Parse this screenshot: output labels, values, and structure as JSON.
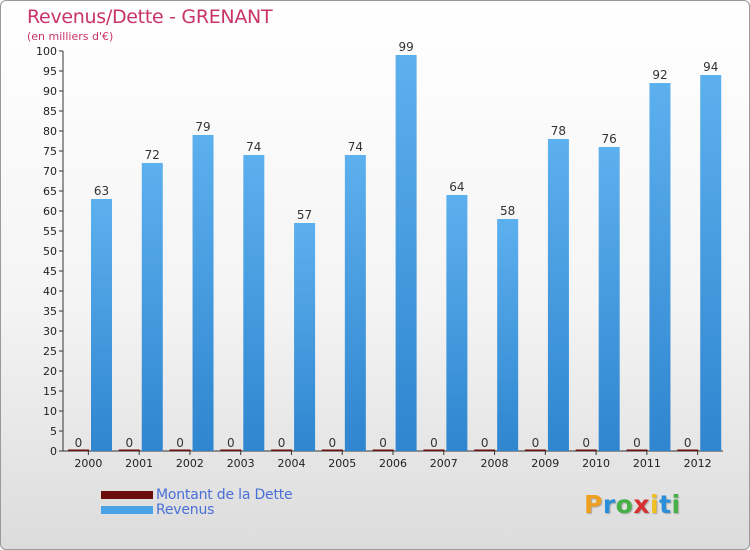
{
  "header": {
    "title": "Revenus/Dette - GRENANT",
    "subtitle": "(en milliers d'€)"
  },
  "legend": {
    "items": [
      {
        "label": "Montant de la Dette",
        "color": "#6b0d0d"
      },
      {
        "label": "Revenus",
        "color": "#4aa3e6"
      }
    ]
  },
  "brand": {
    "text": "Proxiti",
    "letters": [
      "P",
      "r",
      "o",
      "x",
      "i",
      "t",
      "i"
    ],
    "letter_colors": [
      "#f0a020",
      "#2a8fd8",
      "#45b045",
      "#d83030",
      "#f0c020",
      "#2a8fd8",
      "#45b045"
    ]
  },
  "chart_data": {
    "type": "bar",
    "title": "Revenus/Dette - GRENANT",
    "ylabel": "(en milliers d'€)",
    "xlabel": "",
    "categories": [
      "2000",
      "2001",
      "2002",
      "2003",
      "2004",
      "2005",
      "2006",
      "2007",
      "2008",
      "2009",
      "2010",
      "2011",
      "2012"
    ],
    "ylim": [
      0,
      100
    ],
    "ytick_step": 5,
    "grid": false,
    "series": [
      {
        "name": "Montant de la Dette",
        "color": "#6b0d0d",
        "values": [
          0,
          0,
          0,
          0,
          0,
          0,
          0,
          0,
          0,
          0,
          0,
          0,
          0
        ]
      },
      {
        "name": "Revenus",
        "color": "#4aa3e6",
        "values": [
          63,
          72,
          79,
          74,
          57,
          74,
          99,
          64,
          58,
          78,
          76,
          92,
          94
        ]
      }
    ]
  }
}
